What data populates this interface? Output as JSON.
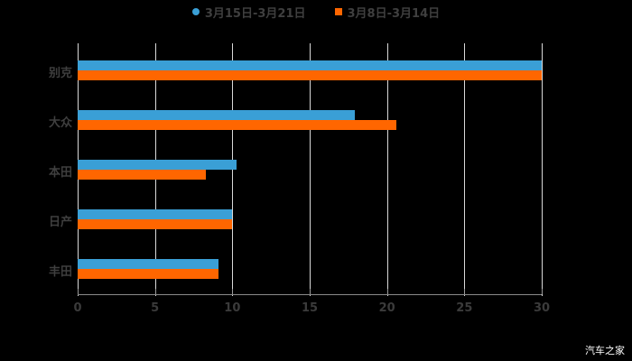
{
  "chart_data": {
    "type": "bar",
    "orientation": "horizontal",
    "title": "",
    "xlabel": "",
    "ylabel": "",
    "xlim": [
      0,
      30
    ],
    "x_ticks": [
      "0",
      "5",
      "10",
      "15",
      "20",
      "25",
      "30"
    ],
    "grid": true,
    "legend_position": "top",
    "categories": [
      "别克",
      "大众",
      "本田",
      "日产",
      "丰田"
    ],
    "series": [
      {
        "name": "3月15日-3月21日",
        "color": "#3a9fd6",
        "values": [
          30,
          17.9,
          10.3,
          10.0,
          9.1
        ]
      },
      {
        "name": "3月8日-3月14日",
        "color": "#ff6600",
        "values": [
          30,
          20.6,
          8.3,
          10.0,
          9.1
        ]
      }
    ]
  },
  "legend": {
    "items": [
      {
        "label": "3月15日-3月21日",
        "color": "#3a9fd6",
        "marker": "circle"
      },
      {
        "label": "3月8日-3月14日",
        "color": "#ff6600",
        "marker": "square"
      }
    ]
  },
  "watermark": "汽车之家"
}
